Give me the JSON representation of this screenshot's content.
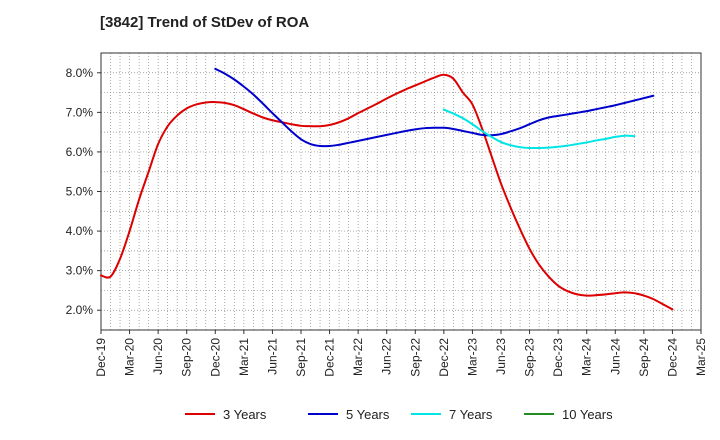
{
  "title": "[3842]  Trend of StDev of ROA",
  "chart_data": {
    "type": "line",
    "title": "[3842]  Trend of StDev of ROA",
    "xlabel": "",
    "ylabel": "",
    "x_ticks": [
      "Dec-19",
      "Mar-20",
      "Jun-20",
      "Sep-20",
      "Dec-20",
      "Mar-21",
      "Jun-21",
      "Sep-21",
      "Dec-21",
      "Mar-22",
      "Jun-22",
      "Sep-22",
      "Dec-22",
      "Mar-23",
      "Jun-23",
      "Sep-23",
      "Dec-23",
      "Mar-24",
      "Jun-24",
      "Sep-24",
      "Dec-24",
      "Mar-25"
    ],
    "y_ticks": [
      2.0,
      3.0,
      4.0,
      5.0,
      6.0,
      7.0,
      8.0
    ],
    "y_tick_labels": [
      "2.0%",
      "3.0%",
      "4.0%",
      "5.0%",
      "6.0%",
      "7.0%",
      "8.0%"
    ],
    "ylim": [
      1.5,
      8.5
    ],
    "grid": true,
    "legend_position": "bottom",
    "series": [
      {
        "name": "3 Years",
        "color": "#dd0000",
        "points": [
          [
            "Dec-19",
            2.88
          ],
          [
            "Jan-20",
            2.85
          ],
          [
            "Feb-20",
            3.3
          ],
          [
            "Mar-20",
            4.0
          ],
          [
            "Apr-20",
            4.8
          ],
          [
            "May-20",
            5.5
          ],
          [
            "Jun-20",
            6.2
          ],
          [
            "Jul-20",
            6.65
          ],
          [
            "Aug-20",
            6.92
          ],
          [
            "Sep-20",
            7.1
          ],
          [
            "Oct-20",
            7.2
          ],
          [
            "Nov-20",
            7.25
          ],
          [
            "Dec-20",
            7.26
          ],
          [
            "Jan-21",
            7.24
          ],
          [
            "Feb-21",
            7.18
          ],
          [
            "Mar-21",
            7.08
          ],
          [
            "Apr-21",
            6.97
          ],
          [
            "May-21",
            6.87
          ],
          [
            "Jun-21",
            6.8
          ],
          [
            "Jul-21",
            6.75
          ],
          [
            "Aug-21",
            6.7
          ],
          [
            "Sep-21",
            6.66
          ],
          [
            "Oct-21",
            6.65
          ],
          [
            "Nov-21",
            6.65
          ],
          [
            "Dec-21",
            6.68
          ],
          [
            "Jan-22",
            6.75
          ],
          [
            "Feb-22",
            6.85
          ],
          [
            "Mar-22",
            6.98
          ],
          [
            "Apr-22",
            7.1
          ],
          [
            "May-22",
            7.22
          ],
          [
            "Jun-22",
            7.35
          ],
          [
            "Jul-22",
            7.47
          ],
          [
            "Aug-22",
            7.58
          ],
          [
            "Sep-22",
            7.68
          ],
          [
            "Oct-22",
            7.78
          ],
          [
            "Nov-22",
            7.88
          ],
          [
            "Dec-22",
            7.95
          ],
          [
            "Jan-23",
            7.85
          ],
          [
            "Feb-23",
            7.5
          ],
          [
            "Mar-23",
            7.2
          ],
          [
            "Apr-23",
            6.6
          ],
          [
            "May-23",
            5.9
          ],
          [
            "Jun-23",
            5.2
          ],
          [
            "Jul-23",
            4.6
          ],
          [
            "Aug-23",
            4.05
          ],
          [
            "Sep-23",
            3.55
          ],
          [
            "Oct-23",
            3.15
          ],
          [
            "Nov-23",
            2.85
          ],
          [
            "Dec-23",
            2.62
          ],
          [
            "Jan-24",
            2.48
          ],
          [
            "Feb-24",
            2.4
          ],
          [
            "Mar-24",
            2.37
          ],
          [
            "Apr-24",
            2.38
          ],
          [
            "May-24",
            2.4
          ],
          [
            "Jun-24",
            2.43
          ],
          [
            "Jul-24",
            2.45
          ],
          [
            "Aug-24",
            2.43
          ],
          [
            "Sep-24",
            2.37
          ],
          [
            "Oct-24",
            2.28
          ],
          [
            "Nov-24",
            2.15
          ],
          [
            "Dec-24",
            2.02
          ]
        ]
      },
      {
        "name": "5 Years",
        "color": "#0000cc",
        "points": [
          [
            "Dec-20",
            8.1
          ],
          [
            "Jan-21",
            7.98
          ],
          [
            "Feb-21",
            7.83
          ],
          [
            "Mar-21",
            7.65
          ],
          [
            "Apr-21",
            7.45
          ],
          [
            "May-21",
            7.22
          ],
          [
            "Jun-21",
            6.98
          ],
          [
            "Jul-21",
            6.75
          ],
          [
            "Aug-21",
            6.52
          ],
          [
            "Sep-21",
            6.32
          ],
          [
            "Oct-21",
            6.2
          ],
          [
            "Nov-21",
            6.15
          ],
          [
            "Dec-21",
            6.15
          ],
          [
            "Jan-22",
            6.18
          ],
          [
            "Feb-22",
            6.23
          ],
          [
            "Mar-22",
            6.28
          ],
          [
            "Apr-22",
            6.33
          ],
          [
            "May-22",
            6.38
          ],
          [
            "Jun-22",
            6.43
          ],
          [
            "Jul-22",
            6.48
          ],
          [
            "Aug-22",
            6.53
          ],
          [
            "Sep-22",
            6.57
          ],
          [
            "Oct-22",
            6.6
          ],
          [
            "Nov-22",
            6.61
          ],
          [
            "Dec-22",
            6.61
          ],
          [
            "Jan-23",
            6.58
          ],
          [
            "Feb-23",
            6.53
          ],
          [
            "Mar-23",
            6.48
          ],
          [
            "Apr-23",
            6.43
          ],
          [
            "May-23",
            6.42
          ],
          [
            "Jun-23",
            6.45
          ],
          [
            "Jul-23",
            6.52
          ],
          [
            "Aug-23",
            6.6
          ],
          [
            "Sep-23",
            6.7
          ],
          [
            "Oct-23",
            6.8
          ],
          [
            "Nov-23",
            6.87
          ],
          [
            "Dec-23",
            6.91
          ],
          [
            "Jan-24",
            6.95
          ],
          [
            "Feb-24",
            6.99
          ],
          [
            "Mar-24",
            7.03
          ],
          [
            "Apr-24",
            7.08
          ],
          [
            "May-24",
            7.13
          ],
          [
            "Jun-24",
            7.18
          ],
          [
            "Jul-24",
            7.24
          ],
          [
            "Aug-24",
            7.3
          ],
          [
            "Sep-24",
            7.36
          ],
          [
            "Oct-24",
            7.42
          ]
        ]
      },
      {
        "name": "7 Years",
        "color": "#00e5e5",
        "points": [
          [
            "Dec-22",
            7.07
          ],
          [
            "Jan-23",
            6.97
          ],
          [
            "Feb-23",
            6.85
          ],
          [
            "Mar-23",
            6.7
          ],
          [
            "Apr-23",
            6.53
          ],
          [
            "May-23",
            6.38
          ],
          [
            "Jun-23",
            6.25
          ],
          [
            "Jul-23",
            6.17
          ],
          [
            "Aug-23",
            6.12
          ],
          [
            "Sep-23",
            6.1
          ],
          [
            "Oct-23",
            6.1
          ],
          [
            "Nov-23",
            6.11
          ],
          [
            "Dec-23",
            6.13
          ],
          [
            "Jan-24",
            6.16
          ],
          [
            "Feb-24",
            6.2
          ],
          [
            "Mar-24",
            6.24
          ],
          [
            "Apr-24",
            6.29
          ],
          [
            "May-24",
            6.33
          ],
          [
            "Jun-24",
            6.38
          ],
          [
            "Jul-24",
            6.41
          ],
          [
            "Aug-24",
            6.4
          ]
        ]
      },
      {
        "name": "10 Years",
        "color": "#228b22",
        "points": []
      }
    ]
  }
}
